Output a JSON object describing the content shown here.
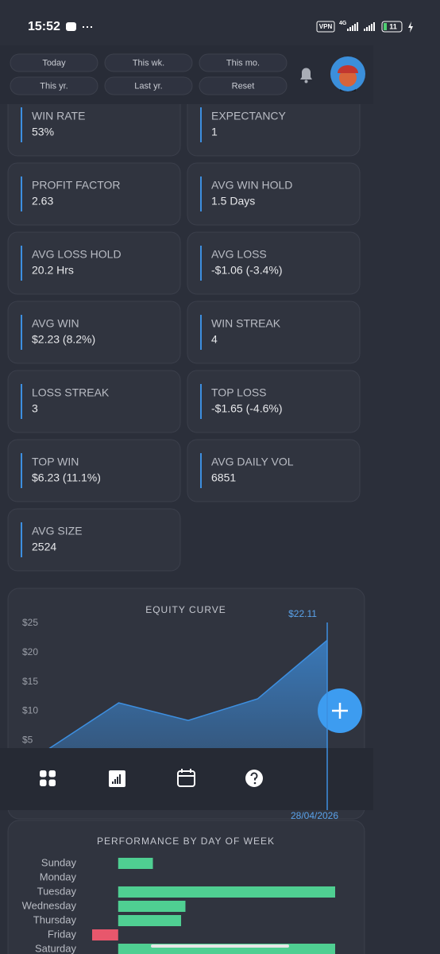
{
  "status_bar": {
    "time": "15:52",
    "vpn": "VPN",
    "network": "4G",
    "battery": "11"
  },
  "filters": [
    "Today",
    "This wk.",
    "This mo.",
    "This yr.",
    "Last yr.",
    "Reset"
  ],
  "stats": [
    {
      "label": "WIN RATE",
      "value": "53%"
    },
    {
      "label": "EXPECTANCY",
      "value": "1"
    },
    {
      "label": "PROFIT FACTOR",
      "value": "2.63"
    },
    {
      "label": "AVG WIN HOLD",
      "value": "1.5 Days"
    },
    {
      "label": "AVG LOSS HOLD",
      "value": "20.2 Hrs"
    },
    {
      "label": "AVG LOSS",
      "value": "-$1.06 (-3.4%)"
    },
    {
      "label": "AVG WIN",
      "value": "$2.23 (8.2%)"
    },
    {
      "label": "WIN STREAK",
      "value": "4"
    },
    {
      "label": "LOSS STREAK",
      "value": "3"
    },
    {
      "label": "TOP LOSS",
      "value": "-$1.65 (-4.6%)"
    },
    {
      "label": "TOP WIN",
      "value": "$6.23 (11.1%)"
    },
    {
      "label": "AVG DAILY VOL",
      "value": "6851"
    },
    {
      "label": "AVG SIZE",
      "value": "2524"
    }
  ],
  "chart_data": [
    {
      "type": "area",
      "title": "EQUITY CURVE",
      "categories": [
        null,
        null,
        null,
        null,
        null
      ],
      "values": [
        3.6,
        11.4,
        8.4,
        12.1,
        22.11
      ],
      "color": "#3d8fe0",
      "ylim": [
        0,
        25
      ],
      "yticks": [
        {
          "value": 5,
          "label": "$5"
        },
        {
          "value": 10,
          "label": "$10"
        },
        {
          "value": 15,
          "label": "$15"
        },
        {
          "value": 20,
          "label": "$20"
        },
        {
          "value": 25,
          "label": "$25"
        }
      ],
      "tooltip": {
        "label": "$22.11",
        "date": "28/04/2026"
      }
    },
    {
      "type": "hbar",
      "title": "PERFORMANCE BY DAY OF WEEK",
      "categories": [
        "Sunday",
        "Monday",
        "Tuesday",
        "Wednesday",
        "Thursday",
        "Friday",
        "Saturday"
      ],
      "values": [
        1.6,
        0,
        10,
        3.1,
        2.9,
        -1.2,
        10
      ],
      "colors": {
        "positive": "#4fcf92",
        "negative": "#e8576c"
      }
    }
  ]
}
